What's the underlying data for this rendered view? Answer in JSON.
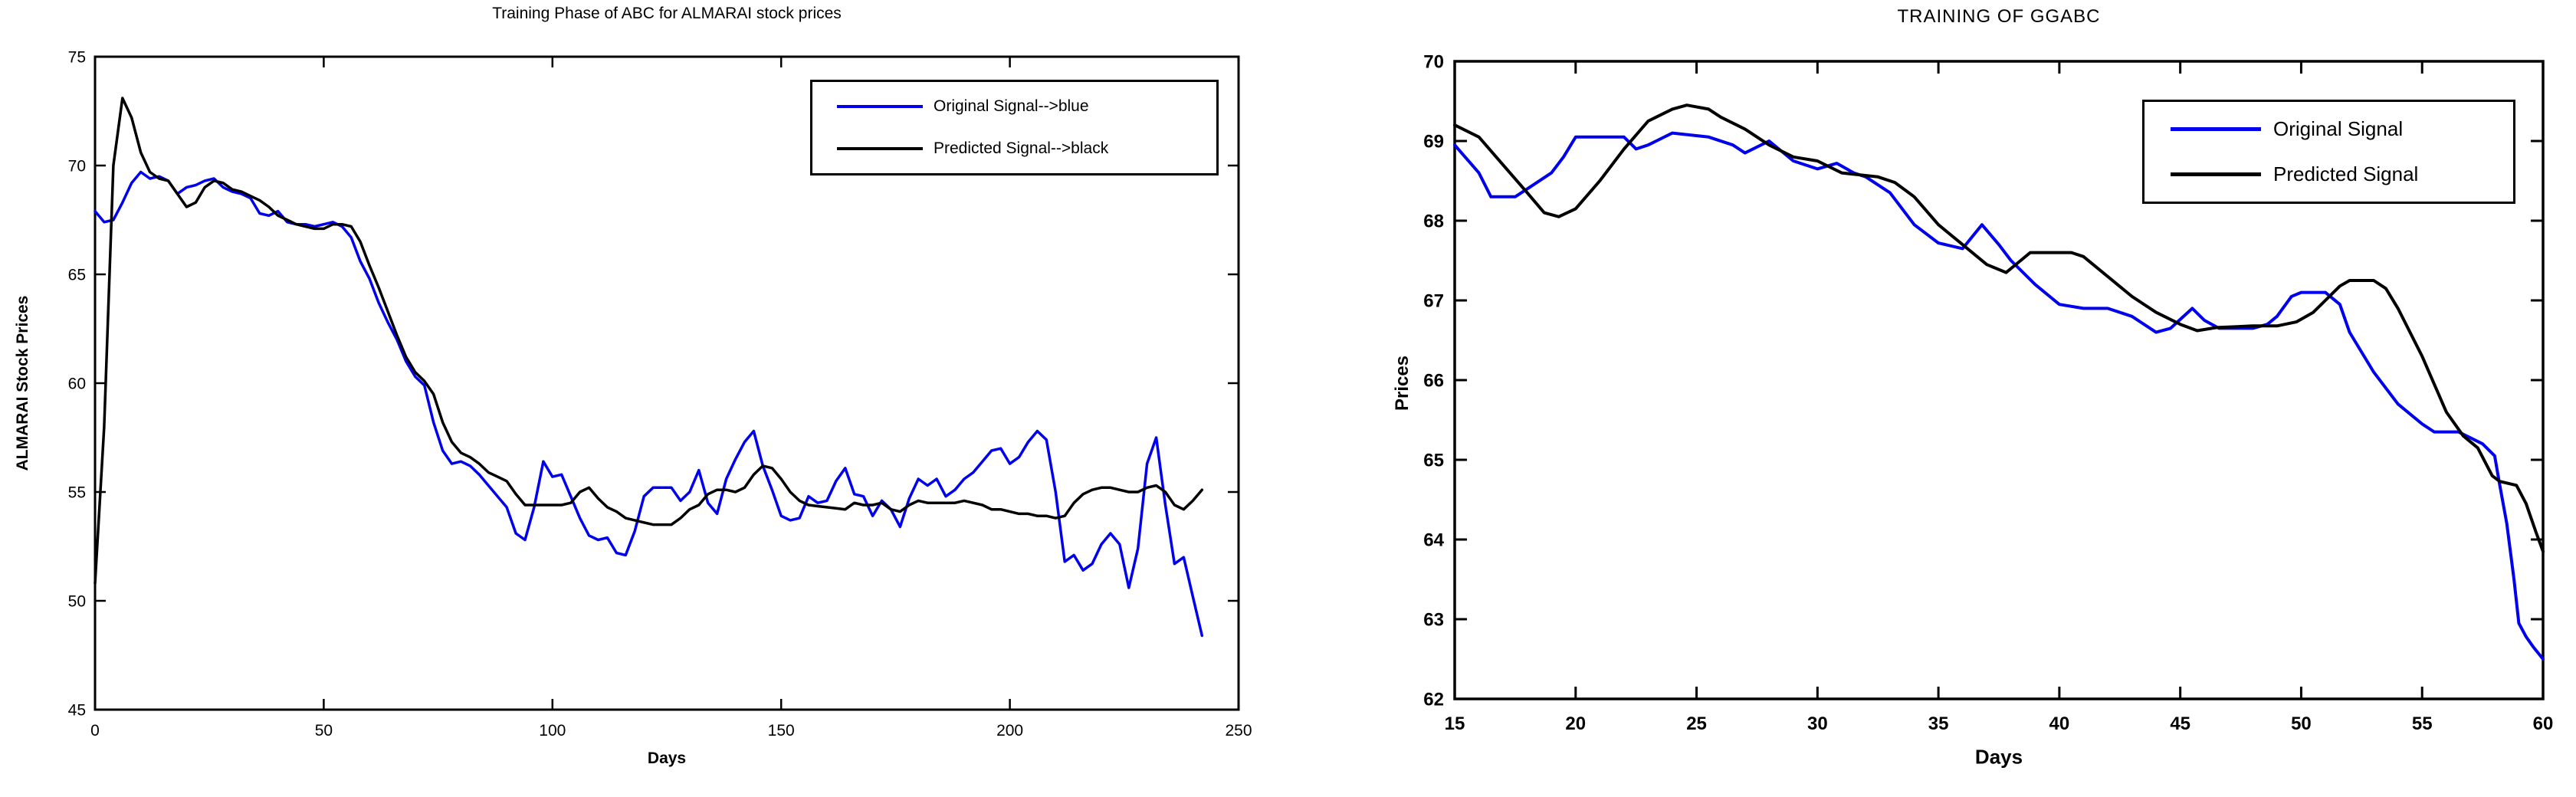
{
  "page": {
    "background": "#ffffff",
    "curve_blue": "#0000ee",
    "curve_black": "#000000"
  },
  "chart_data": [
    {
      "type": "line",
      "title": "Training Phase of ABC for ALMARAI stock prices",
      "xlabel": "Days",
      "ylabel": "ALMARAI Stock Prices",
      "xlim": [
        0,
        250
      ],
      "ylim": [
        45,
        75
      ],
      "xticks": [
        0,
        50,
        100,
        150,
        200,
        250
      ],
      "yticks": [
        45,
        50,
        55,
        60,
        65,
        70,
        75
      ],
      "grid": false,
      "legend_position": "top-right",
      "legend": [
        {
          "label": "Original Signal-->blue",
          "color": "#0000ee"
        },
        {
          "label": "Predicted Signal-->black",
          "color": "#000000"
        }
      ],
      "series": [
        {
          "name": "Original Signal",
          "color": "#0000ee",
          "x_start": 0,
          "x_step": 2,
          "values": [
            67.9,
            67.4,
            67.5,
            68.3,
            69.2,
            69.7,
            69.4,
            69.5,
            69.3,
            68.7,
            69.0,
            69.1,
            69.3,
            69.4,
            69.0,
            68.8,
            68.7,
            68.5,
            67.8,
            67.7,
            67.9,
            67.4,
            67.3,
            67.3,
            67.2,
            67.3,
            67.4,
            67.2,
            66.7,
            65.6,
            64.8,
            63.7,
            62.8,
            62.0,
            61.0,
            60.3,
            59.9,
            58.2,
            56.9,
            56.3,
            56.4,
            56.2,
            55.8,
            55.3,
            54.8,
            54.3,
            53.1,
            52.8,
            54.3,
            56.4,
            55.7,
            55.8,
            54.8,
            53.8,
            53.0,
            52.8,
            52.9,
            52.2,
            52.1,
            53.2,
            54.8,
            55.2,
            55.2,
            55.2,
            54.6,
            55.0,
            56.0,
            54.5,
            54.0,
            55.6,
            56.5,
            57.3,
            57.8,
            56.2,
            55.1,
            53.9,
            53.7,
            53.8,
            54.8,
            54.5,
            54.6,
            55.5,
            56.1,
            54.9,
            54.8,
            53.9,
            54.6,
            54.2,
            53.4,
            54.7,
            55.6,
            55.3,
            55.6,
            54.8,
            55.1,
            55.6,
            55.9,
            56.4,
            56.9,
            57.0,
            56.3,
            56.6,
            57.3,
            57.8,
            57.4,
            55.0,
            51.8,
            52.1,
            51.4,
            51.7,
            52.6,
            53.1,
            52.6,
            50.6,
            52.4,
            56.3,
            57.5,
            54.4,
            51.7,
            52.0,
            50.2,
            48.4
          ]
        },
        {
          "name": "Predicted Signal",
          "color": "#000000",
          "x_start": 0,
          "x_step": 2,
          "values": [
            50.8,
            58.0,
            70.0,
            73.1,
            72.2,
            70.6,
            69.7,
            69.4,
            69.3,
            68.7,
            68.1,
            68.3,
            69.0,
            69.3,
            69.2,
            68.9,
            68.8,
            68.6,
            68.4,
            68.1,
            67.7,
            67.5,
            67.3,
            67.2,
            67.1,
            67.1,
            67.3,
            67.3,
            67.2,
            66.5,
            65.4,
            64.4,
            63.3,
            62.2,
            61.2,
            60.5,
            60.1,
            59.5,
            58.2,
            57.3,
            56.8,
            56.6,
            56.3,
            55.9,
            55.7,
            55.5,
            54.9,
            54.4,
            54.4,
            54.4,
            54.4,
            54.4,
            54.5,
            55.0,
            55.2,
            54.7,
            54.3,
            54.1,
            53.8,
            53.7,
            53.6,
            53.5,
            53.5,
            53.5,
            53.8,
            54.2,
            54.4,
            54.9,
            55.1,
            55.1,
            55.0,
            55.2,
            55.8,
            56.2,
            56.1,
            55.6,
            55.0,
            54.6,
            54.4,
            54.35,
            54.3,
            54.25,
            54.2,
            54.5,
            54.4,
            54.4,
            54.5,
            54.2,
            54.1,
            54.4,
            54.6,
            54.5,
            54.5,
            54.5,
            54.5,
            54.6,
            54.5,
            54.4,
            54.2,
            54.2,
            54.1,
            54.0,
            54.0,
            53.9,
            53.9,
            53.8,
            53.9,
            54.5,
            54.9,
            55.1,
            55.2,
            55.2,
            55.1,
            55.0,
            55.0,
            55.2,
            55.3,
            55.0,
            54.4,
            54.2,
            54.6,
            55.1
          ]
        }
      ]
    },
    {
      "type": "line",
      "title": "TRAINING OF GGABC",
      "xlabel": "Days",
      "ylabel": "Prices",
      "xlim": [
        15,
        60
      ],
      "ylim": [
        62,
        70
      ],
      "xticks": [
        15,
        20,
        25,
        30,
        35,
        40,
        45,
        50,
        55,
        60
      ],
      "yticks": [
        62,
        63,
        64,
        65,
        66,
        67,
        68,
        69,
        70
      ],
      "grid": false,
      "legend_position": "top-right",
      "legend": [
        {
          "label": "Original Signal",
          "color": "#0000ee"
        },
        {
          "label": "Predicted Signal",
          "color": "#000000"
        }
      ],
      "series": [
        {
          "name": "Original Signal",
          "color": "#0000ee",
          "points": [
            [
              15,
              68.95
            ],
            [
              16,
              68.6
            ],
            [
              16.5,
              68.3
            ],
            [
              17.5,
              68.3
            ],
            [
              18,
              68.4
            ],
            [
              19,
              68.6
            ],
            [
              19.5,
              68.8
            ],
            [
              20,
              69.05
            ],
            [
              22,
              69.05
            ],
            [
              22.5,
              68.9
            ],
            [
              23,
              68.95
            ],
            [
              24,
              69.1
            ],
            [
              25.5,
              69.05
            ],
            [
              26.5,
              68.95
            ],
            [
              27,
              68.85
            ],
            [
              28,
              69.0
            ],
            [
              29,
              68.75
            ],
            [
              30,
              68.65
            ],
            [
              30.8,
              68.72
            ],
            [
              31.5,
              68.6
            ],
            [
              32,
              68.55
            ],
            [
              33,
              68.35
            ],
            [
              34,
              67.95
            ],
            [
              35,
              67.72
            ],
            [
              36,
              67.65
            ],
            [
              36.8,
              67.95
            ],
            [
              37.5,
              67.7
            ],
            [
              38,
              67.5
            ],
            [
              39,
              67.2
            ],
            [
              40,
              66.95
            ],
            [
              41,
              66.9
            ],
            [
              42,
              66.9
            ],
            [
              43,
              66.8
            ],
            [
              44,
              66.6
            ],
            [
              44.6,
              66.65
            ],
            [
              45.5,
              66.9
            ],
            [
              46,
              66.75
            ],
            [
              46.6,
              66.65
            ],
            [
              48,
              66.65
            ],
            [
              48.6,
              66.7
            ],
            [
              49,
              66.8
            ],
            [
              49.6,
              67.05
            ],
            [
              50,
              67.1
            ],
            [
              51,
              67.1
            ],
            [
              51.6,
              66.95
            ],
            [
              52,
              66.6
            ],
            [
              53,
              66.1
            ],
            [
              54,
              65.7
            ],
            [
              55,
              65.45
            ],
            [
              55.5,
              65.35
            ],
            [
              56.5,
              65.35
            ],
            [
              57.5,
              65.2
            ],
            [
              58,
              65.05
            ],
            [
              58.2,
              64.7
            ],
            [
              58.5,
              64.2
            ],
            [
              58.8,
              63.5
            ],
            [
              59,
              62.95
            ],
            [
              59.3,
              62.78
            ],
            [
              59.6,
              62.65
            ],
            [
              60,
              62.5
            ]
          ]
        },
        {
          "name": "Predicted Signal",
          "color": "#000000",
          "points": [
            [
              15,
              69.2
            ],
            [
              16,
              69.05
            ],
            [
              17,
              68.7
            ],
            [
              18,
              68.35
            ],
            [
              18.7,
              68.1
            ],
            [
              19.3,
              68.05
            ],
            [
              20,
              68.15
            ],
            [
              21,
              68.5
            ],
            [
              22,
              68.9
            ],
            [
              23,
              69.25
            ],
            [
              24,
              69.4
            ],
            [
              24.6,
              69.45
            ],
            [
              25.5,
              69.4
            ],
            [
              26,
              69.3
            ],
            [
              27,
              69.15
            ],
            [
              28,
              68.95
            ],
            [
              29,
              68.8
            ],
            [
              30,
              68.75
            ],
            [
              31,
              68.6
            ],
            [
              32.5,
              68.55
            ],
            [
              33.2,
              68.48
            ],
            [
              34,
              68.3
            ],
            [
              35,
              67.95
            ],
            [
              36,
              67.7
            ],
            [
              37,
              67.45
            ],
            [
              37.8,
              67.35
            ],
            [
              38.4,
              67.5
            ],
            [
              38.8,
              67.6
            ],
            [
              40.5,
              67.6
            ],
            [
              41,
              67.55
            ],
            [
              42,
              67.3
            ],
            [
              43,
              67.05
            ],
            [
              44,
              66.85
            ],
            [
              45,
              66.7
            ],
            [
              45.7,
              66.62
            ],
            [
              46.5,
              66.66
            ],
            [
              48,
              66.68
            ],
            [
              49,
              66.68
            ],
            [
              49.8,
              66.73
            ],
            [
              50.5,
              66.85
            ],
            [
              51,
              67.0
            ],
            [
              51.6,
              67.18
            ],
            [
              52,
              67.25
            ],
            [
              53,
              67.25
            ],
            [
              53.5,
              67.15
            ],
            [
              54,
              66.9
            ],
            [
              55,
              66.3
            ],
            [
              56,
              65.6
            ],
            [
              56.7,
              65.3
            ],
            [
              57.3,
              65.15
            ],
            [
              57.9,
              64.8
            ],
            [
              58.2,
              64.73
            ],
            [
              58.9,
              64.68
            ],
            [
              59.3,
              64.45
            ],
            [
              59.7,
              64.1
            ],
            [
              60,
              63.85
            ]
          ]
        }
      ]
    }
  ]
}
